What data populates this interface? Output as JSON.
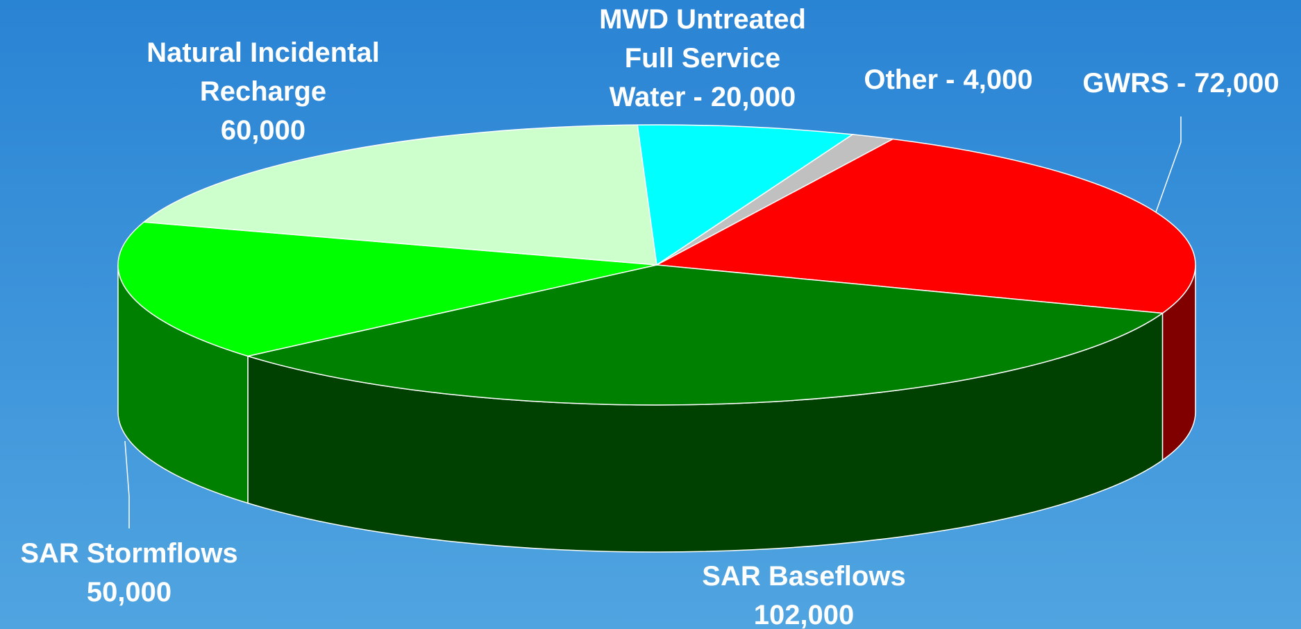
{
  "chart_data": {
    "type": "pie3d",
    "categories": [
      [
        "GWRS -"
      ],
      [
        "SAR Baseflows"
      ],
      [
        "SAR Stormflows"
      ],
      [
        "Natural Incidental",
        "Recharge"
      ],
      [
        "MWD Untreated",
        "Full Service",
        "Water -"
      ],
      [
        "Other  -"
      ]
    ],
    "values": [
      72000,
      102000,
      50000,
      60000,
      20000,
      4000
    ],
    "value_labels": [
      "72,000",
      "102,000",
      "50,000",
      "60,000",
      "20,000",
      "4,000"
    ],
    "colors": [
      "#ff0000",
      "#008000",
      "#00ff00",
      "#ccffcc",
      "#00ffff",
      "#c0c0c0"
    ]
  }
}
